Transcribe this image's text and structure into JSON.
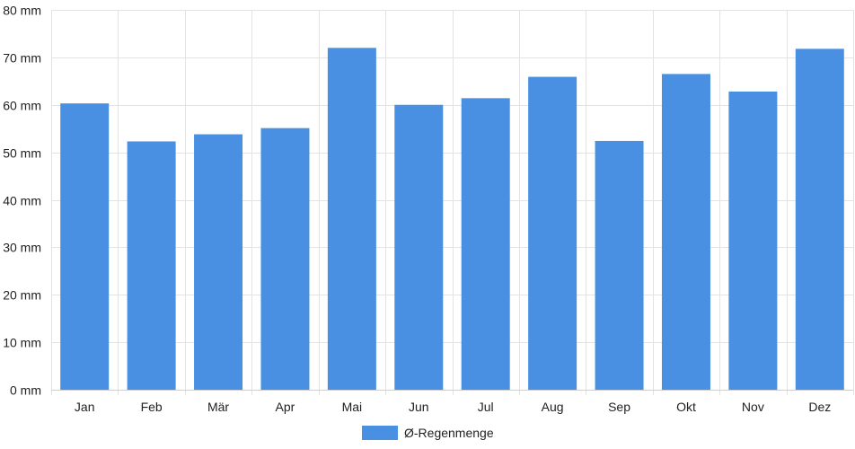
{
  "chart_data": {
    "type": "bar",
    "categories": [
      "Jan",
      "Feb",
      "Mär",
      "Apr",
      "Mai",
      "Jun",
      "Jul",
      "Aug",
      "Sep",
      "Okt",
      "Nov",
      "Dez"
    ],
    "series": [
      {
        "name": "Ø-Regenmenge",
        "values": [
          60.3,
          52.3,
          53.8,
          55.1,
          72.0,
          60.0,
          61.4,
          65.9,
          52.4,
          66.5,
          62.8,
          71.8
        ]
      }
    ],
    "y_unit_suffix": " mm",
    "ylim": [
      0,
      80
    ],
    "y_ticks": [
      0,
      10,
      20,
      30,
      40,
      50,
      60,
      70,
      80
    ],
    "grid": true,
    "legend_position": "bottom",
    "bar_color": "#4a90e2",
    "grid_color": "#e3e3e3"
  }
}
